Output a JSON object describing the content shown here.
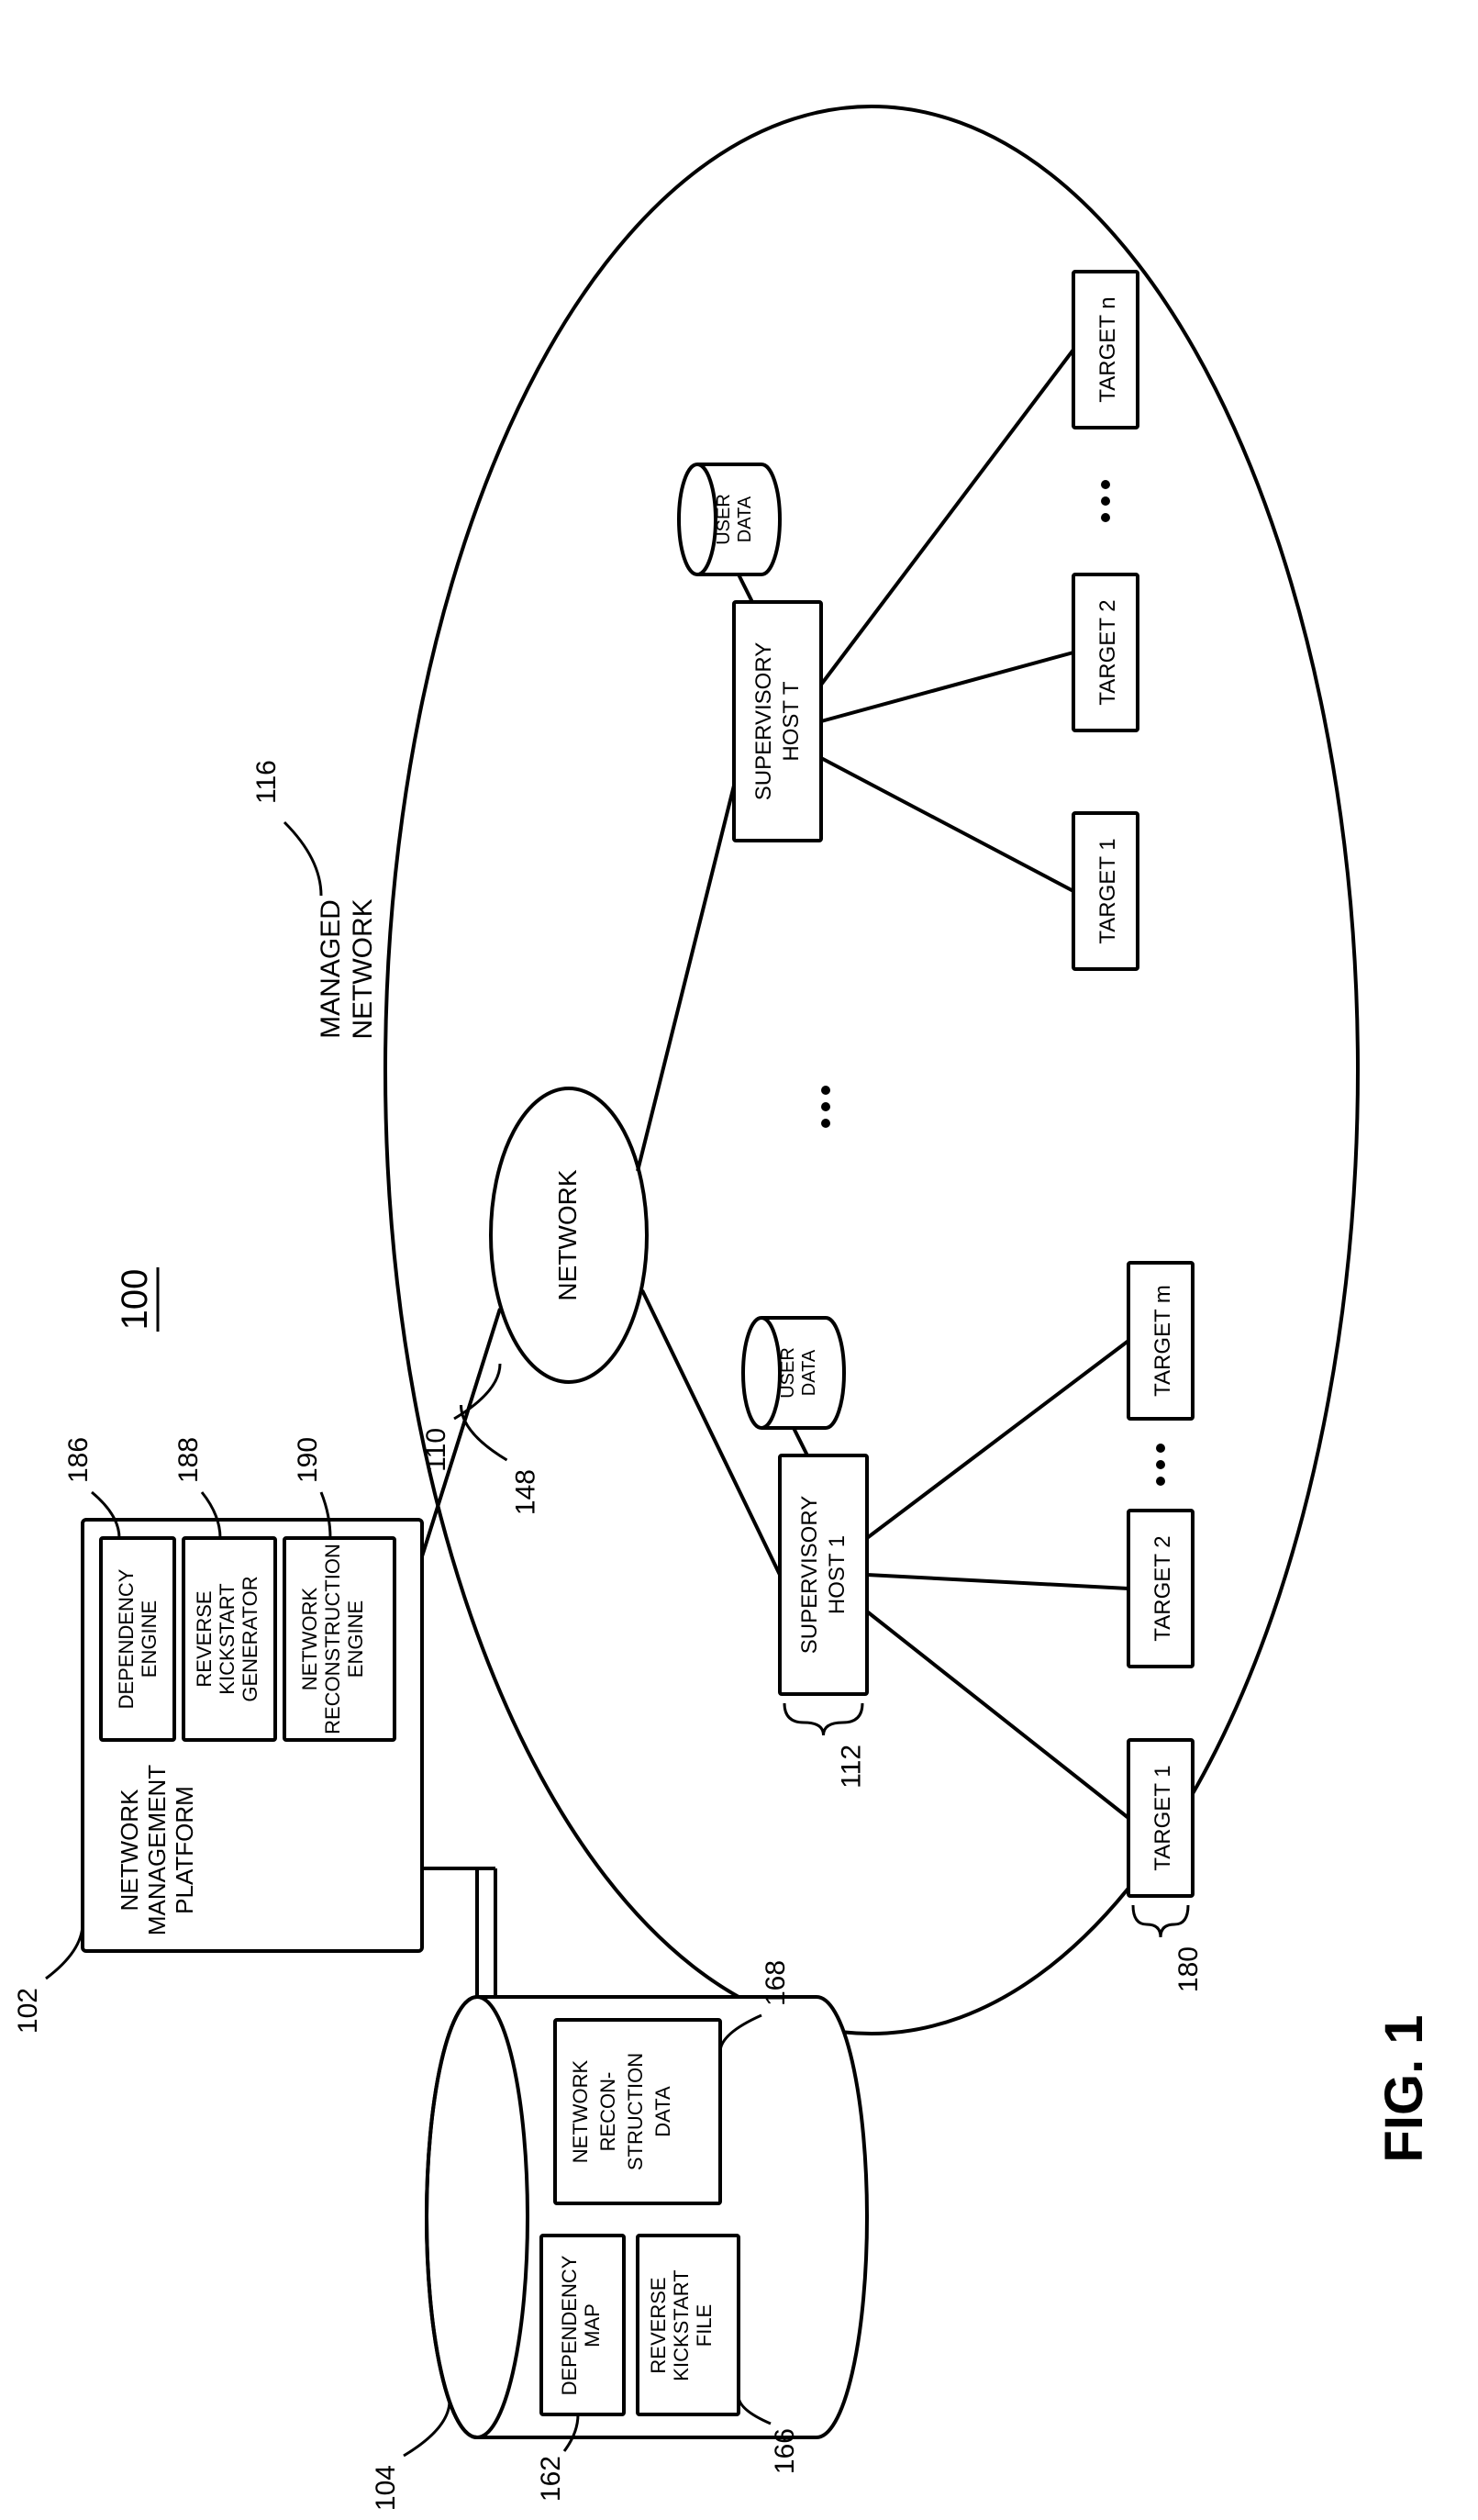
{
  "figure": {
    "title": "FIG. 1",
    "title_fontsize": 58,
    "title_fontweight": "bold",
    "ref_number": "100",
    "ref_fontsize": 40
  },
  "platform": {
    "title_line1": "NETWORK",
    "title_line2": "MANAGEMENT",
    "title_line3": "PLATFORM",
    "ref": "102",
    "dep_engine": {
      "line1": "DEPENDENCY",
      "line2": "ENGINE",
      "ref": "186"
    },
    "rev_kick": {
      "line1": "REVERSE",
      "line2": "KICKSTART",
      "line3": "GENERATOR",
      "ref": "188"
    },
    "net_recon": {
      "line1": "NETWORK",
      "line2": "RECONSTRUCTION",
      "line3": "ENGINE",
      "ref": "190"
    }
  },
  "store": {
    "ref": "104",
    "dep_map": {
      "line1": "DEPENDENCY",
      "line2": "MAP",
      "ref": "162"
    },
    "rev_file": {
      "line1": "REVERSE",
      "line2": "KICKSTART",
      "line3": "FILE",
      "ref": "166"
    },
    "net_data": {
      "line1": "NETWORK",
      "line2": "RECON-",
      "line3": "STRUCTION",
      "line4": "DATA",
      "ref": "168"
    }
  },
  "network": {
    "label": "NETWORK",
    "ref": "110",
    "managed_line1": "MANAGED",
    "managed_line2": "NETWORK",
    "managed_ref": "116",
    "link_ref": "148"
  },
  "host1": {
    "line1": "SUPERVISORY",
    "line2": "HOST 1",
    "ref": "112",
    "user_data": {
      "line1": "USER",
      "line2": "DATA"
    },
    "targets": {
      "t1": "TARGET 1",
      "t2": "TARGET 2",
      "tm": "TARGET m"
    },
    "targets_ref": "180"
  },
  "hostT": {
    "line1": "SUPERVISORY",
    "line2": "HOST T",
    "user_data": {
      "line1": "USER",
      "line2": "DATA"
    },
    "targets": {
      "t1": "TARGET 1",
      "t2": "TARGET 2",
      "tn": "TARGET n"
    }
  },
  "style": {
    "stroke": "#000000",
    "stroke_width": 4,
    "box_fontsize": 24,
    "label_fontsize": 30
  }
}
